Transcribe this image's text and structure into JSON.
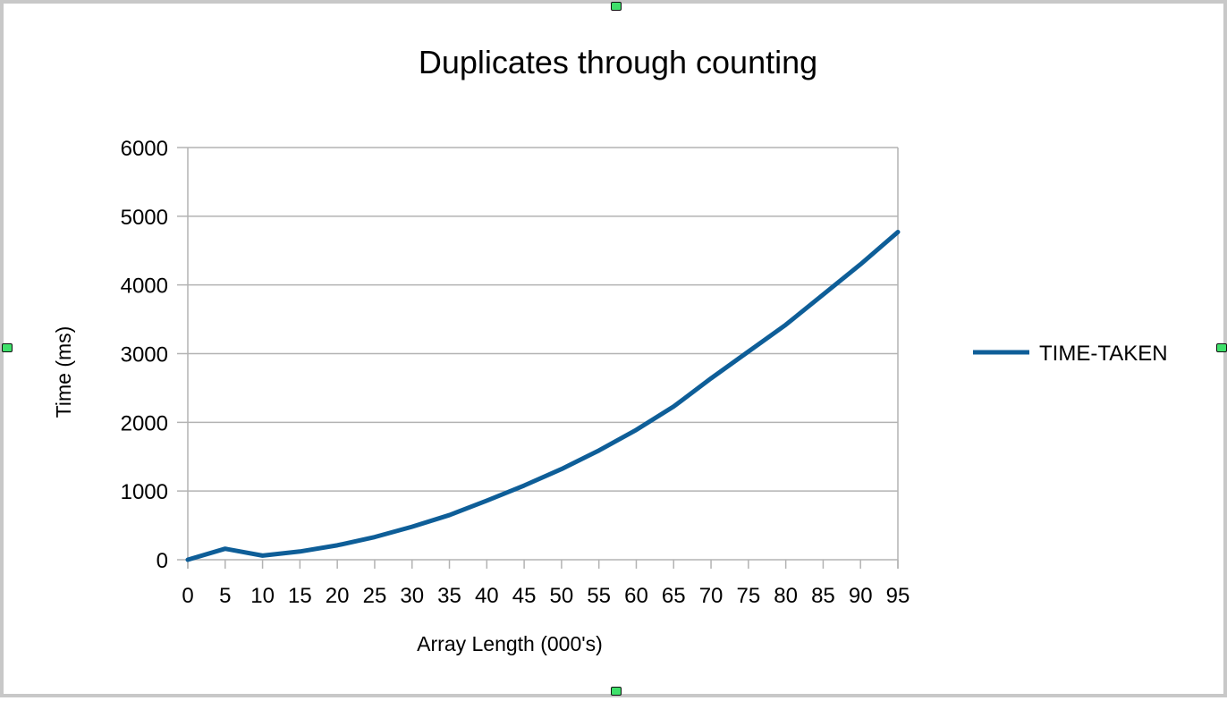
{
  "chart_data": {
    "type": "line",
    "title": "Duplicates through counting",
    "xlabel": "Array Length (000's)",
    "ylabel": "Time (ms)",
    "x": [
      0,
      5,
      10,
      15,
      20,
      25,
      30,
      35,
      40,
      45,
      50,
      55,
      60,
      65,
      70,
      75,
      80,
      85,
      90,
      95
    ],
    "ylim": [
      0,
      6000
    ],
    "yticks": [
      0,
      1000,
      2000,
      3000,
      4000,
      5000,
      6000
    ],
    "grid": true,
    "legend_position": "right",
    "series": [
      {
        "name": "TIME-TAKEN",
        "color": "#0e5e98",
        "values": [
          0,
          160,
          60,
          120,
          210,
          330,
          480,
          650,
          860,
          1080,
          1320,
          1590,
          1890,
          2230,
          2640,
          3030,
          3420,
          3860,
          4300,
          4770
        ]
      }
    ]
  }
}
